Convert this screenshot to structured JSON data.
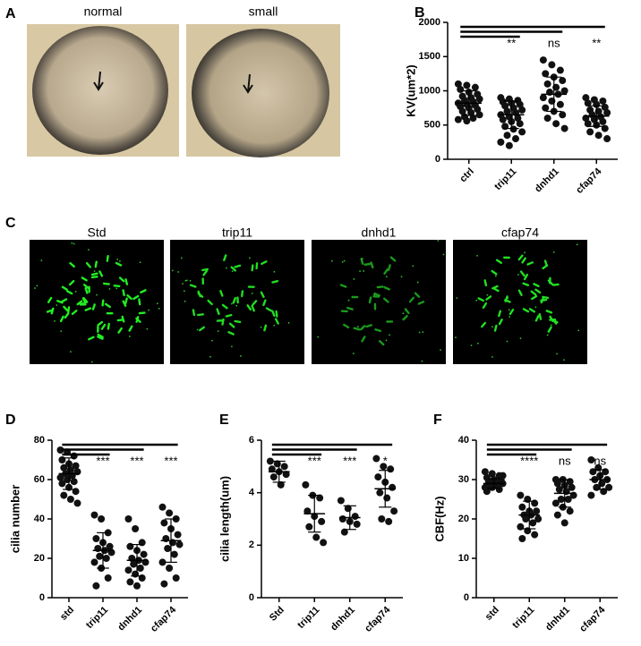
{
  "image_panels": {
    "A": {
      "label": "A",
      "captions": [
        "normal",
        "small"
      ]
    },
    "C": {
      "label": "C",
      "captions": [
        "Std",
        "trip11",
        "dnhd1",
        "cfap74"
      ]
    }
  },
  "chart_data": [
    {
      "type": "dotplot",
      "label": "B",
      "ylabel": "KV(um*2)",
      "categories": [
        "ctrl",
        "trip11",
        "dnhd1",
        "cfap74"
      ],
      "points": [
        [
          1100,
          1080,
          1050,
          1020,
          980,
          950,
          920,
          900,
          880,
          860,
          840,
          820,
          800,
          790,
          770,
          750,
          730,
          700,
          680,
          650,
          620,
          600,
          580,
          560
        ],
        [
          900,
          880,
          860,
          840,
          820,
          800,
          780,
          750,
          720,
          700,
          680,
          650,
          620,
          600,
          580,
          550,
          520,
          480,
          440,
          400,
          350,
          300,
          250,
          200
        ],
        [
          1450,
          1380,
          1300,
          1250,
          1200,
          1150,
          1100,
          1050,
          1000,
          980,
          950,
          900,
          850,
          800,
          750,
          700,
          650,
          600,
          520,
          450
        ],
        [
          900,
          870,
          850,
          820,
          800,
          760,
          720,
          700,
          680,
          650,
          620,
          600,
          580,
          550,
          520,
          500,
          450,
          400,
          350,
          300
        ]
      ],
      "means": [
        820,
        650,
        950,
        630
      ],
      "sd": [
        180,
        200,
        250,
        150
      ],
      "significance": [
        "**",
        "ns",
        "**"
      ],
      "ylim": [
        0,
        2000
      ],
      "yticks": [
        0,
        500,
        1000,
        1500,
        2000
      ]
    },
    {
      "type": "dotplot",
      "label": "D",
      "ylabel": "cilia number",
      "categories": [
        "std",
        "trip11",
        "dnhd1",
        "cfap74"
      ],
      "points": [
        [
          75,
          74,
          72,
          70,
          68,
          67,
          66,
          65,
          64,
          63,
          62,
          61,
          60,
          59,
          58,
          56,
          54,
          52,
          50,
          48
        ],
        [
          42,
          40,
          33,
          30,
          28,
          26,
          25,
          24,
          23,
          21,
          20,
          18,
          15,
          10,
          6
        ],
        [
          40,
          35,
          28,
          26,
          24,
          22,
          20,
          19,
          18,
          17,
          15,
          14,
          12,
          10,
          8,
          6
        ],
        [
          46,
          43,
          40,
          38,
          35,
          32,
          30,
          28,
          27,
          25,
          22,
          18,
          15,
          10,
          7
        ]
      ],
      "means": [
        63,
        24,
        19,
        29
      ],
      "sd": [
        8,
        9,
        8,
        11
      ],
      "significance": [
        "***",
        "***",
        "***"
      ],
      "ylim": [
        0,
        80
      ],
      "yticks": [
        0,
        20,
        40,
        60,
        80
      ]
    },
    {
      "type": "dotplot",
      "label": "E",
      "ylabel": "cilia length(um)",
      "categories": [
        "Std",
        "trip11",
        "dnhd1",
        "cfap74"
      ],
      "points": [
        [
          5.2,
          5.1,
          5.0,
          4.9,
          4.8,
          4.7,
          4.6,
          4.3
        ],
        [
          4.3,
          3.9,
          3.8,
          3.3,
          3.1,
          2.9,
          2.7,
          2.3,
          2.1
        ],
        [
          3.7,
          3.4,
          3.1,
          3.0,
          2.9,
          2.8,
          2.5
        ],
        [
          5.3,
          5.0,
          4.9,
          4.6,
          4.4,
          4.2,
          4.0,
          3.8,
          3.3,
          3.0,
          2.9
        ]
      ],
      "means": [
        4.8,
        3.2,
        3.05,
        4.15
      ],
      "sd": [
        0.4,
        0.7,
        0.45,
        0.7
      ],
      "significance": [
        "***",
        "***",
        "*"
      ],
      "ylim": [
        0,
        6
      ],
      "yticks": [
        0,
        2,
        4,
        6
      ]
    },
    {
      "type": "dotplot",
      "label": "F",
      "ylabel": "CBF(Hz)",
      "categories": [
        "std",
        "trip11",
        "dnhd1",
        "cfap74"
      ],
      "points": [
        [
          32,
          31.5,
          31,
          30.5,
          30,
          30,
          29.5,
          29,
          29,
          28.5,
          28.5,
          28,
          28,
          27.5,
          27,
          29,
          30,
          28,
          29,
          31
        ],
        [
          26,
          25,
          24,
          23,
          22,
          22,
          21,
          21,
          20,
          20,
          19,
          18,
          17,
          16,
          15
        ],
        [
          30,
          30,
          29.5,
          29,
          28.5,
          28,
          27.5,
          27,
          26,
          25,
          25,
          24,
          23,
          22,
          21,
          19
        ],
        [
          35,
          33,
          32,
          32,
          31,
          30,
          30,
          29,
          28,
          28,
          27,
          26
        ]
      ],
      "means": [
        29,
        21,
        26.5,
        30
      ],
      "sd": [
        1.2,
        3.5,
        3.5,
        2.5
      ],
      "significance": [
        "****",
        "ns",
        "ns"
      ],
      "ylim": [
        0,
        40
      ],
      "yticks": [
        0,
        10,
        20,
        30,
        40
      ]
    }
  ]
}
